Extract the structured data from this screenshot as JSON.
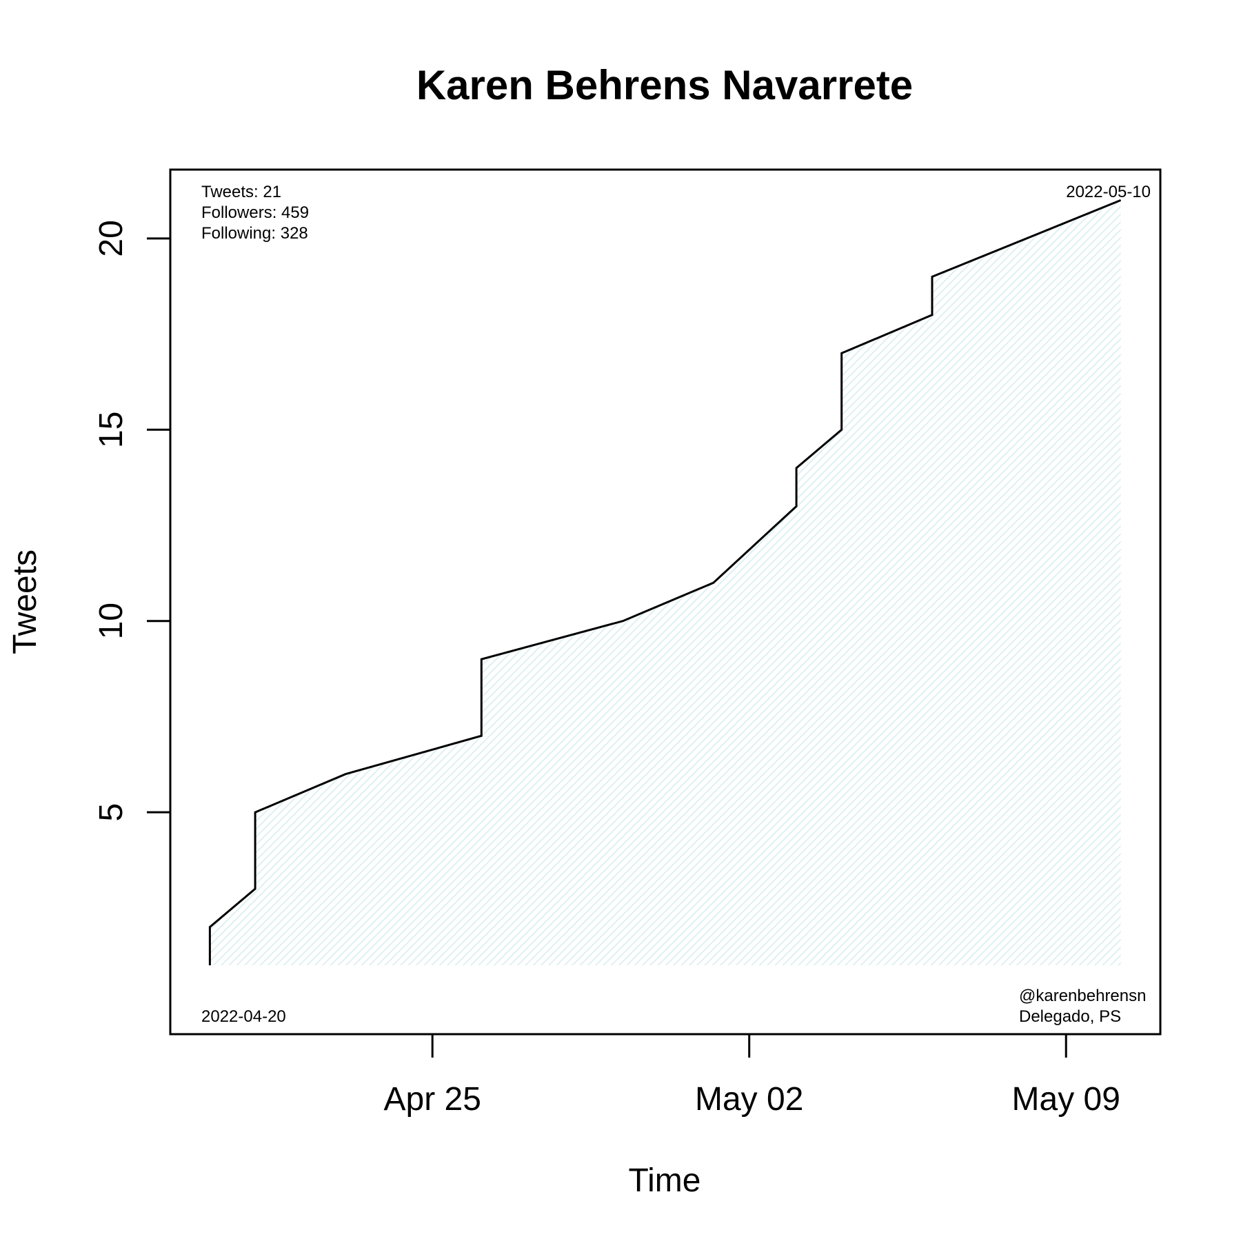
{
  "chart_data": {
    "type": "line",
    "title": "Karen Behrens Navarrete",
    "xlabel": "Time",
    "ylabel": "Tweets",
    "x_ticks": [
      {
        "date": "2022-04-25",
        "label": "Apr 25"
      },
      {
        "date": "2022-05-02",
        "label": "May 02"
      },
      {
        "date": "2022-05-09",
        "label": "May 09"
      }
    ],
    "y_ticks": [
      5,
      10,
      15,
      20
    ],
    "xlim": [
      "2022-04-19T05:00",
      "2022-05-11T02:00"
    ],
    "ylim": [
      -0.8,
      21.8
    ],
    "grid": false,
    "fill_color": "#dff0f3",
    "line_color": "#000000",
    "series": [
      {
        "points": [
          {
            "x": "2022-04-20T02:00",
            "y": 1
          },
          {
            "x": "2022-04-20T02:00",
            "y": 2
          },
          {
            "x": "2022-04-21T02:00",
            "y": 3
          },
          {
            "x": "2022-04-21T02:00",
            "y": 5
          },
          {
            "x": "2022-04-23T02:00",
            "y": 6
          },
          {
            "x": "2022-04-26T02:00",
            "y": 7
          },
          {
            "x": "2022-04-26T02:00",
            "y": 9
          },
          {
            "x": "2022-04-29T05:00",
            "y": 10
          },
          {
            "x": "2022-05-01T05:00",
            "y": 11
          },
          {
            "x": "2022-05-03T01:00",
            "y": 13
          },
          {
            "x": "2022-05-03T01:00",
            "y": 14
          },
          {
            "x": "2022-05-04T01:00",
            "y": 15
          },
          {
            "x": "2022-05-04T01:00",
            "y": 17
          },
          {
            "x": "2022-05-06T01:00",
            "y": 18
          },
          {
            "x": "2022-05-06T01:00",
            "y": 19
          },
          {
            "x": "2022-05-10T05:00",
            "y": 21
          }
        ]
      }
    ]
  },
  "annotations": {
    "tweets": "Tweets: 21",
    "followers": "Followers: 459",
    "following": "Following: 328",
    "start_date": "2022-04-20",
    "end_date": "2022-05-10",
    "handle": "@karenbehrensn",
    "role": "Delegado, PS"
  }
}
